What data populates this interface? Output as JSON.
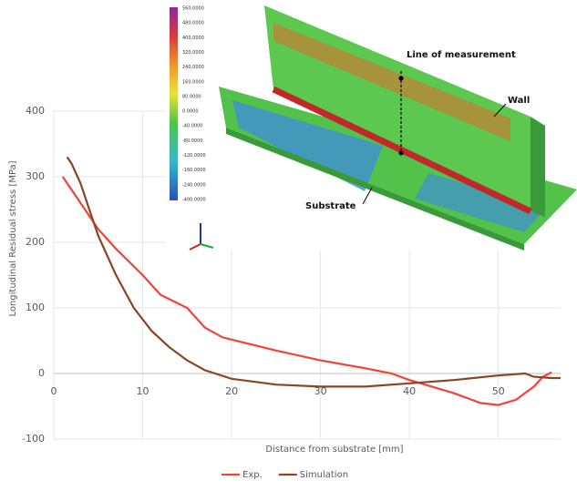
{
  "chart_data": {
    "type": "line",
    "x_label": "Distance from substrate [mm]",
    "y_label": "Longitudinal Residual stress [MPa]",
    "xlim": [
      0,
      57
    ],
    "ylim": [
      -100,
      400
    ],
    "xticks": [
      0,
      10,
      20,
      30,
      40,
      50
    ],
    "yticks": [
      -100,
      0,
      100,
      200,
      300,
      400
    ],
    "grid": true,
    "legend": "bottom",
    "series": [
      {
        "name": "Exp.",
        "color": "#f2433a",
        "x": [
          1,
          3,
          5,
          7,
          10,
          12,
          15,
          17,
          19,
          22,
          25,
          30,
          35,
          38,
          40,
          45,
          48,
          50,
          52,
          54,
          55,
          56
        ],
        "values": [
          300,
          260,
          220,
          190,
          150,
          120,
          100,
          70,
          55,
          45,
          35,
          20,
          8,
          0,
          -10,
          -30,
          -45,
          -48,
          -40,
          -20,
          -5,
          2
        ]
      },
      {
        "name": "Simulation",
        "color": "#8a4524",
        "x": [
          1.5,
          2,
          3,
          4,
          5,
          7,
          9,
          11,
          13,
          15,
          17,
          20,
          25,
          30,
          35,
          40,
          45,
          50,
          53,
          54,
          56,
          57
        ],
        "values": [
          330,
          320,
          290,
          250,
          210,
          150,
          100,
          65,
          40,
          20,
          5,
          -8,
          -17,
          -20,
          -20,
          -15,
          -10,
          -3,
          0,
          -5,
          -7,
          -7
        ]
      }
    ]
  },
  "inset": {
    "colorbar_labels": [
      "560.0000",
      "480.0000",
      "400.0000",
      "320.0000",
      "240.0000",
      "160.0000",
      "80.0000",
      "0.0000",
      "-40.0000",
      "-80.0000",
      "-120.0000",
      "-160.0000",
      "-240.0000",
      "-400.0000"
    ],
    "line_label": "Line of measurement",
    "wall_label": "Wall",
    "substrate_label": "Substrate"
  }
}
